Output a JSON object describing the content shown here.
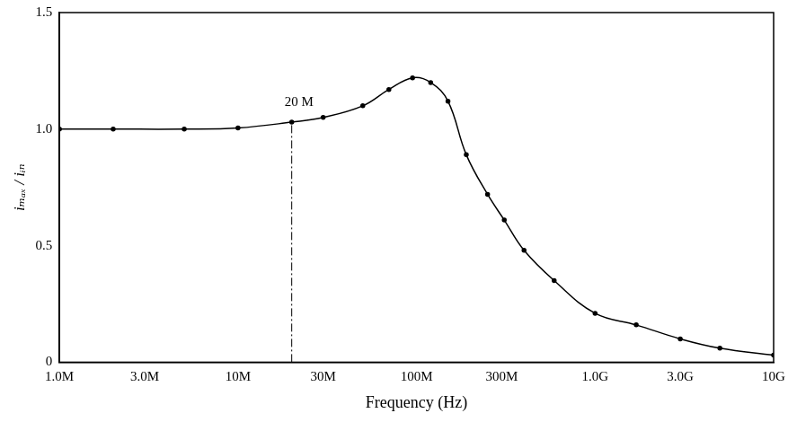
{
  "chart_data": {
    "type": "line",
    "x_label": "Frequency (Hz)",
    "y_label": "iₘₐₓ / iᵢₙ",
    "x": [
      1000000,
      2000000,
      5000000,
      10000000,
      20000000,
      30000000,
      50000000,
      70000000,
      95000000,
      120000000,
      150000000,
      190000000,
      250000000,
      310000000,
      400000000,
      590000000,
      1000000000,
      1700000000,
      3000000000,
      5000000000,
      10000000000
    ],
    "values": [
      1.0,
      1.0,
      1.0,
      1.005,
      1.03,
      1.05,
      1.1,
      1.17,
      1.22,
      1.2,
      1.12,
      0.89,
      0.72,
      0.61,
      0.48,
      0.35,
      0.21,
      0.16,
      0.1,
      0.06,
      0.03
    ],
    "color": "#000000",
    "marker": "circle",
    "log": "x",
    "grid": false,
    "xlim": [
      1000000,
      10000000000
    ],
    "xticks": [
      {
        "value": 1000000,
        "label": "1.0M"
      },
      {
        "value": 3000000,
        "label": "3.0M"
      },
      {
        "value": 10000000,
        "label": "10M"
      },
      {
        "value": 30000000,
        "label": "30M"
      },
      {
        "value": 100000000,
        "label": "100M"
      },
      {
        "value": 300000000,
        "label": "300M"
      },
      {
        "value": 1000000000,
        "label": "1.0G"
      },
      {
        "value": 3000000000,
        "label": "3.0G"
      },
      {
        "value": 10000000000,
        "label": "10G"
      }
    ],
    "ylim": [
      0,
      1.5
    ],
    "yticks": [
      0,
      0.5,
      {
        "value": 1.0,
        "label": "1.0"
      },
      {
        "value": 1.5,
        "label": "1.5"
      }
    ],
    "annotations": [
      {
        "text": "20 M",
        "x": 20000000,
        "y": 1.03
      }
    ]
  }
}
